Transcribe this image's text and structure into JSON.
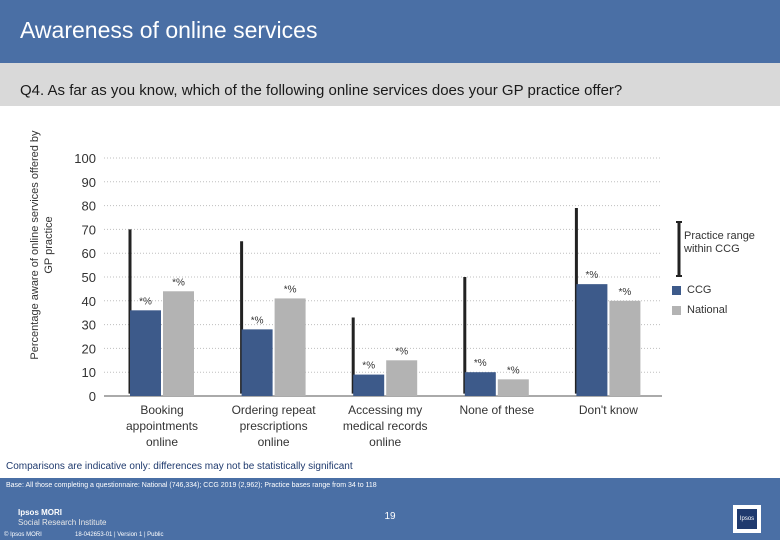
{
  "header": {
    "title": "Awareness of online services"
  },
  "question": "Q4. As far as you know, which of the following online services does your GP practice offer?",
  "note": "Comparisons are indicative only: differences may not be statistically significant",
  "footer": {
    "base": "Base: All those completing a questionnaire: National (746,334); CCG 2019 (2,962); Practice bases range from 34 to 118",
    "logo_line1": "Ipsos MORI",
    "logo_line2": "Social Research Institute",
    "copyright": "© Ipsos MORI",
    "reference": "18-042653-01 | Version 1 | Public",
    "page": "19",
    "box_label": "Ipsos"
  },
  "colors": {
    "ccg": "#3d5a8a",
    "national": "#b3b3b3",
    "range": "#222222",
    "header": "#4a6fa5"
  },
  "chart_data": {
    "type": "bar",
    "title": "",
    "xlabel": "",
    "ylabel": "Percentage aware of online services offered by GP practice",
    "ylim": [
      0,
      100
    ],
    "yticks": [
      0,
      10,
      20,
      30,
      40,
      50,
      60,
      70,
      80,
      90,
      100
    ],
    "grid": true,
    "legend_position": "right",
    "categories": [
      "Booking appointments online",
      "Ordering repeat prescriptions online",
      "Accessing my medical records online",
      "None of these",
      "Don't know"
    ],
    "category_lines": [
      [
        "Booking",
        "appointments",
        "online"
      ],
      [
        "Ordering repeat",
        "prescriptions",
        "online"
      ],
      [
        "Accessing my",
        "medical records",
        "online"
      ],
      [
        "None of these"
      ],
      [
        "Don't know"
      ]
    ],
    "series": [
      {
        "name": "CCG",
        "values": [
          36,
          28,
          9,
          10,
          47
        ],
        "labels": [
          "*%",
          "*%",
          "*%",
          "*%",
          "*%"
        ]
      },
      {
        "name": "National",
        "values": [
          44,
          41,
          15,
          7,
          40
        ],
        "labels": [
          "*%",
          "*%",
          "*%",
          "*%",
          "*%"
        ]
      }
    ],
    "practice_range": {
      "name": "Practice range within CCG",
      "min": [
        1,
        1,
        1,
        1,
        1
      ],
      "max": [
        70,
        65,
        33,
        50,
        79
      ]
    }
  }
}
